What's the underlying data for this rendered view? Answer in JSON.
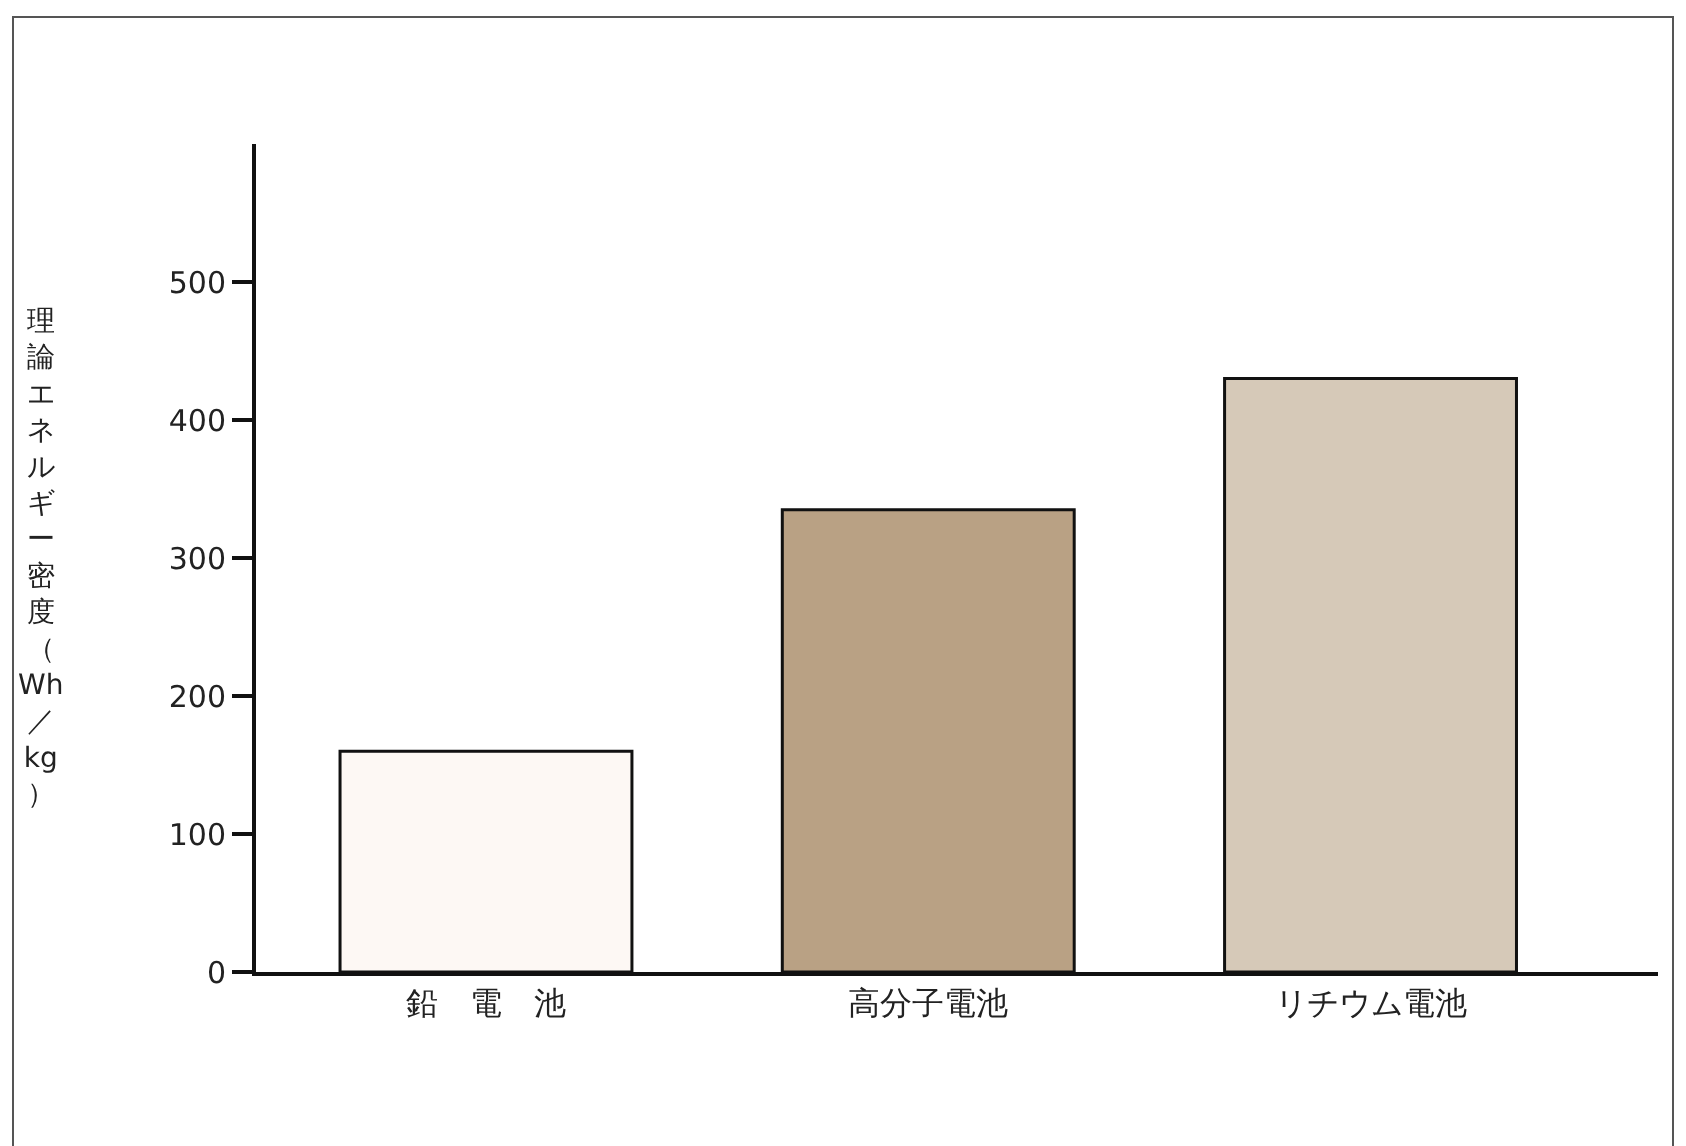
{
  "chart_data": {
    "type": "bar",
    "ylabel": "理論エネルギー密度（Wh／kg）",
    "categories": [
      "鉛　電　池",
      "高分子電池",
      "リチウム電池"
    ],
    "values": [
      160,
      335,
      430
    ],
    "colors": [
      "#fdf8f4",
      "#b9a184",
      "#d6c9b8"
    ],
    "ylim": [
      0,
      600
    ],
    "yticks": [
      0,
      100,
      200,
      300,
      400,
      500
    ],
    "grid": false
  }
}
